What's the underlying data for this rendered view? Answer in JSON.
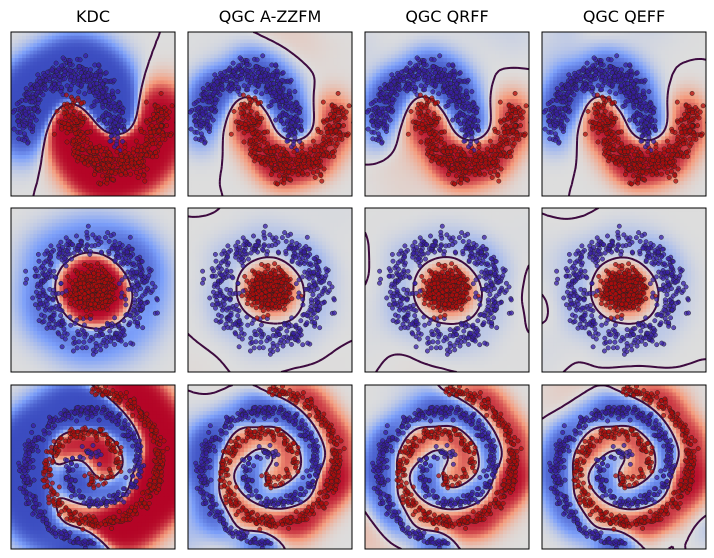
{
  "chart_data": {
    "type": "scatter",
    "layout": {
      "rows": 3,
      "cols": 4
    },
    "columns": [
      "KDC",
      "QGC A-ZZFM",
      "QGC QRFF",
      "QGC QEFF"
    ],
    "rows": [
      "moons",
      "circles",
      "spirals"
    ],
    "xticks": [],
    "yticks": [],
    "grid": false,
    "legend": "none",
    "colormap": "coolwarm",
    "class_colors": {
      "class_0": "#3a1fa8",
      "class_1": "#b10c0c"
    },
    "boundary_color": "#3d0a3f",
    "points_per_class": 450,
    "panels": [
      {
        "row": 0,
        "col": 0,
        "dataset": "moons",
        "model": "KDC"
      },
      {
        "row": 0,
        "col": 1,
        "dataset": "moons",
        "model": "QGC A-ZZFM"
      },
      {
        "row": 0,
        "col": 2,
        "dataset": "moons",
        "model": "QGC QRFF"
      },
      {
        "row": 0,
        "col": 3,
        "dataset": "moons",
        "model": "QGC QEFF"
      },
      {
        "row": 1,
        "col": 0,
        "dataset": "circles",
        "model": "KDC"
      },
      {
        "row": 1,
        "col": 1,
        "dataset": "circles",
        "model": "QGC A-ZZFM"
      },
      {
        "row": 1,
        "col": 2,
        "dataset": "circles",
        "model": "QGC QRFF"
      },
      {
        "row": 1,
        "col": 3,
        "dataset": "circles",
        "model": "QGC QEFF"
      },
      {
        "row": 2,
        "col": 0,
        "dataset": "spirals",
        "model": "KDC"
      },
      {
        "row": 2,
        "col": 1,
        "dataset": "spirals",
        "model": "QGC A-ZZFM"
      },
      {
        "row": 2,
        "col": 2,
        "dataset": "spirals",
        "model": "QGC QRFF"
      },
      {
        "row": 2,
        "col": 3,
        "dataset": "spirals",
        "model": "QGC QEFF"
      }
    ]
  }
}
